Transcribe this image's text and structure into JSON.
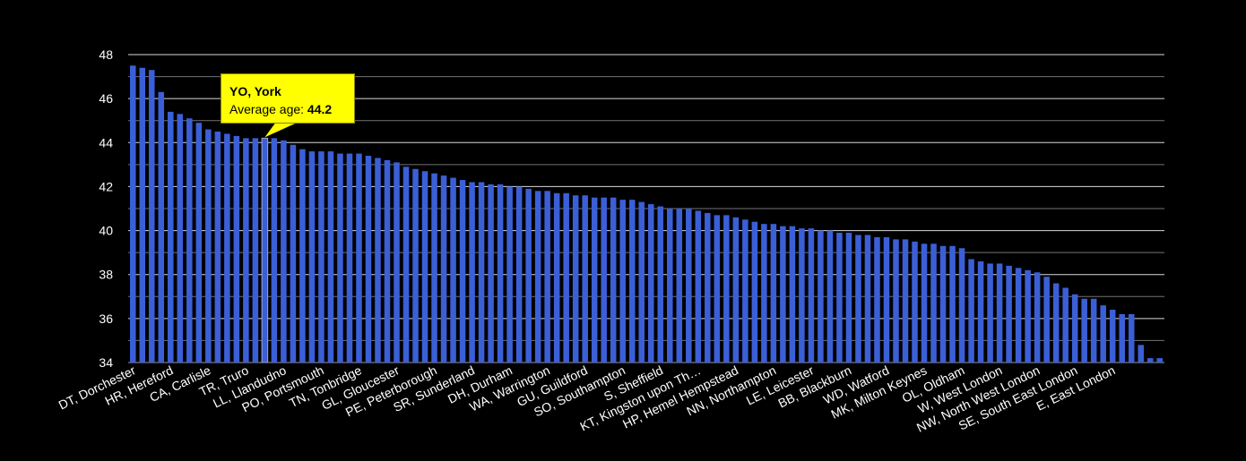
{
  "chart_data": {
    "type": "bar",
    "ylim": [
      34,
      48
    ],
    "yticks": [
      34,
      36,
      38,
      40,
      42,
      44,
      46,
      48
    ],
    "grid": true,
    "bar_color": "#3b5fd6",
    "background": "#000000",
    "grid_color": "#ffffff",
    "text_color": "#ffffff",
    "labeled_categories": [
      "DT, Dorchester",
      "HR, Hereford",
      "CA, Carlisle",
      "TR, Truro",
      "LL, Llandudno",
      "PO, Portsmouth",
      "TN, Tonbridge",
      "GL, Gloucester",
      "PE, Peterborough",
      "SR, Sunderland",
      "DH, Durham",
      "WA, Warrington",
      "GU, Guildford",
      "SO, Southampton",
      "S, Sheffield",
      "KT, Kingston upon Th…",
      "HP, Hemel Hempstead",
      "NN, Northampton",
      "LE, Leicester",
      "BB, Blackburn",
      "WD, Watford",
      "MK, Milton Keynes",
      "OL, Oldham",
      "W, West London",
      "NW, North West London",
      "SE, South East London",
      "E, East London"
    ],
    "label_indices": [
      0,
      4,
      8,
      12,
      16,
      20,
      24,
      28,
      32,
      36,
      40,
      44,
      48,
      52,
      56,
      60,
      64,
      68,
      72,
      76,
      80,
      84,
      88,
      92,
      96,
      100,
      104
    ],
    "values": [
      47.5,
      47.4,
      47.3,
      46.3,
      45.4,
      45.3,
      45.1,
      44.9,
      44.6,
      44.5,
      44.4,
      44.3,
      44.2,
      44.2,
      44.2,
      44.2,
      44.1,
      43.9,
      43.7,
      43.6,
      43.6,
      43.6,
      43.5,
      43.5,
      43.5,
      43.4,
      43.3,
      43.2,
      43.1,
      42.9,
      42.8,
      42.7,
      42.6,
      42.5,
      42.4,
      42.3,
      42.2,
      42.2,
      42.1,
      42.1,
      42.0,
      42.0,
      41.9,
      41.8,
      41.8,
      41.7,
      41.7,
      41.6,
      41.6,
      41.5,
      41.5,
      41.5,
      41.4,
      41.4,
      41.3,
      41.2,
      41.1,
      41.0,
      41.0,
      41.0,
      40.9,
      40.8,
      40.7,
      40.7,
      40.6,
      40.5,
      40.4,
      40.3,
      40.3,
      40.2,
      40.2,
      40.1,
      40.1,
      40.0,
      40.0,
      39.9,
      39.9,
      39.8,
      39.8,
      39.7,
      39.7,
      39.6,
      39.6,
      39.5,
      39.4,
      39.4,
      39.3,
      39.3,
      39.2,
      38.7,
      38.6,
      38.5,
      38.5,
      38.4,
      38.3,
      38.2,
      38.1,
      37.9,
      37.6,
      37.4,
      37.1,
      36.9,
      36.9,
      36.6,
      36.4,
      36.2,
      36.2,
      34.8,
      34.2,
      34.2
    ]
  },
  "tooltip": {
    "title": "YO, York",
    "label": "Average age: ",
    "value": "44.2",
    "bar_index": 14
  }
}
